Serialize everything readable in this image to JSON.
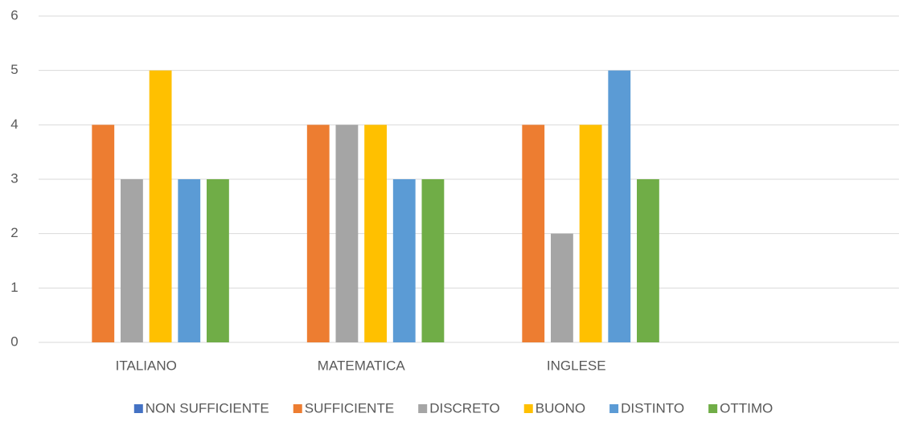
{
  "chart_data": {
    "type": "bar",
    "categories": [
      "ITALIANO",
      "MATEMATICA",
      "INGLESE",
      null
    ],
    "series": [
      {
        "name": "NON SUFFICIENTE",
        "color": "#4472c4",
        "values": [
          0,
          0,
          0,
          null
        ]
      },
      {
        "name": "SUFFICIENTE",
        "color": "#ed7d31",
        "values": [
          4,
          4,
          4,
          null
        ]
      },
      {
        "name": "DISCRETO",
        "color": "#a5a5a5",
        "values": [
          3,
          4,
          2,
          null
        ]
      },
      {
        "name": "BUONO",
        "color": "#ffc000",
        "values": [
          5,
          4,
          4,
          null
        ]
      },
      {
        "name": "DISTINTO",
        "color": "#5b9bd5",
        "values": [
          3,
          3,
          5,
          null
        ]
      },
      {
        "name": "OTTIMO",
        "color": "#70ad47",
        "values": [
          3,
          3,
          3,
          null
        ]
      }
    ],
    "ylim": [
      0,
      6
    ],
    "yticks": [
      0,
      1,
      2,
      3,
      4,
      5,
      6
    ],
    "grid": true,
    "legend": "bottom"
  }
}
